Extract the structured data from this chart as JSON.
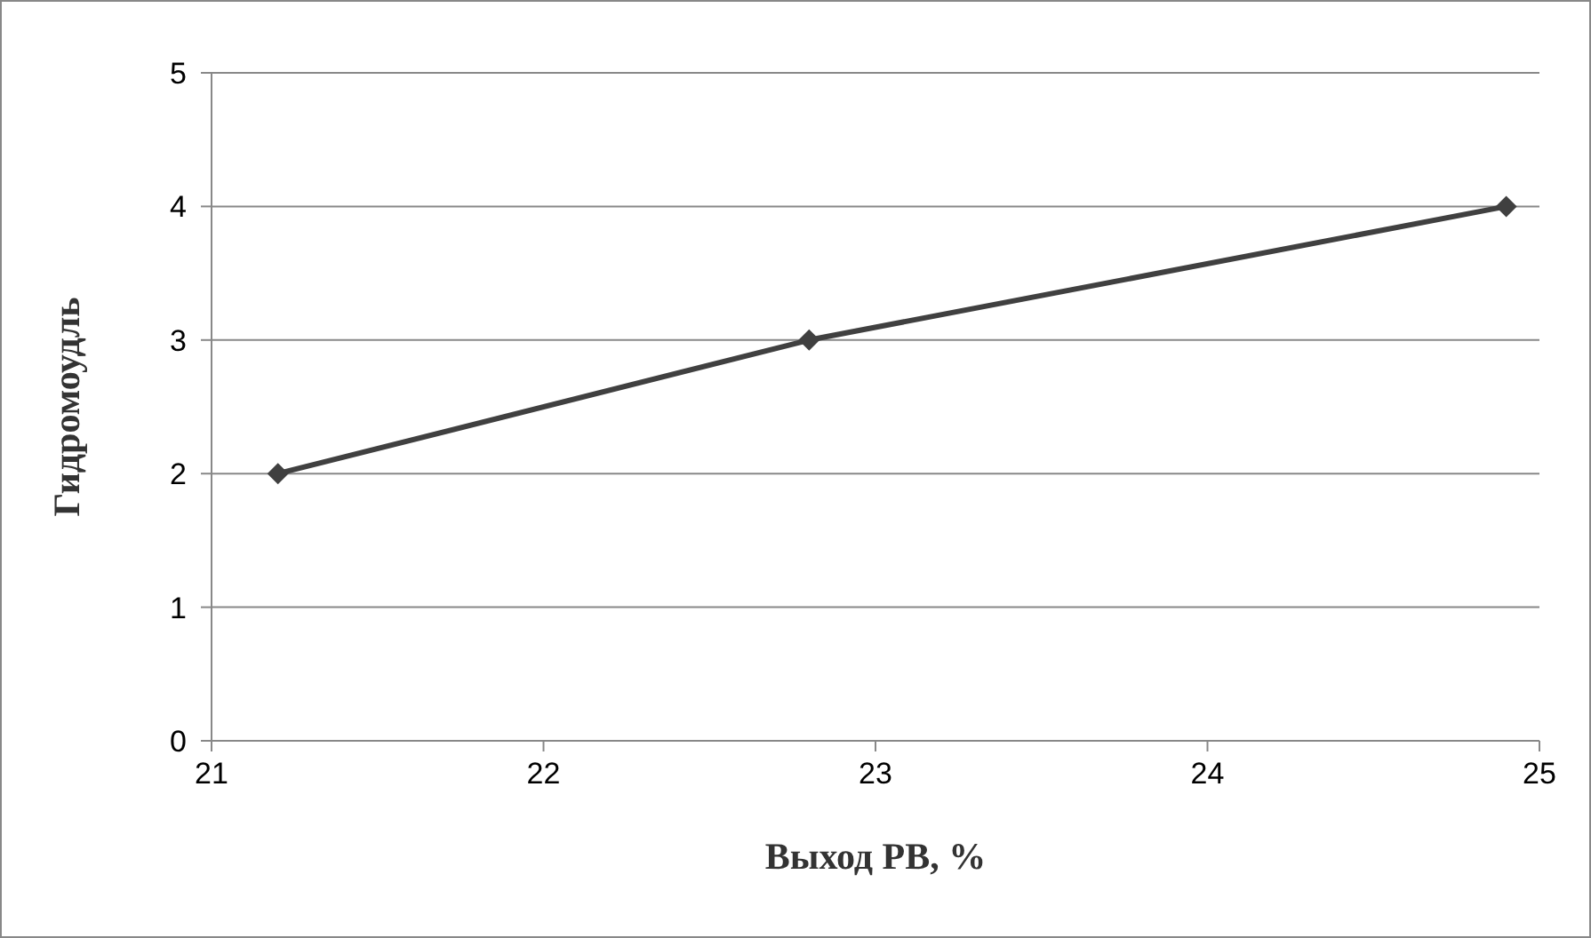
{
  "chart_data": {
    "type": "line",
    "xlabel": "Выход РВ, %",
    "ylabel": "Гидромоудль",
    "x": [
      21.2,
      22.8,
      24.9
    ],
    "series": [
      {
        "color": "#404040",
        "values": [
          2,
          3,
          4
        ]
      }
    ],
    "xlim": [
      21,
      25
    ],
    "xticks": [
      21,
      22,
      23,
      24,
      25
    ],
    "ylim": [
      0,
      5
    ],
    "yticks": [
      0,
      1,
      2,
      3,
      4,
      5
    ],
    "grid": "y",
    "marker": "diamond",
    "line_style": "solid"
  }
}
